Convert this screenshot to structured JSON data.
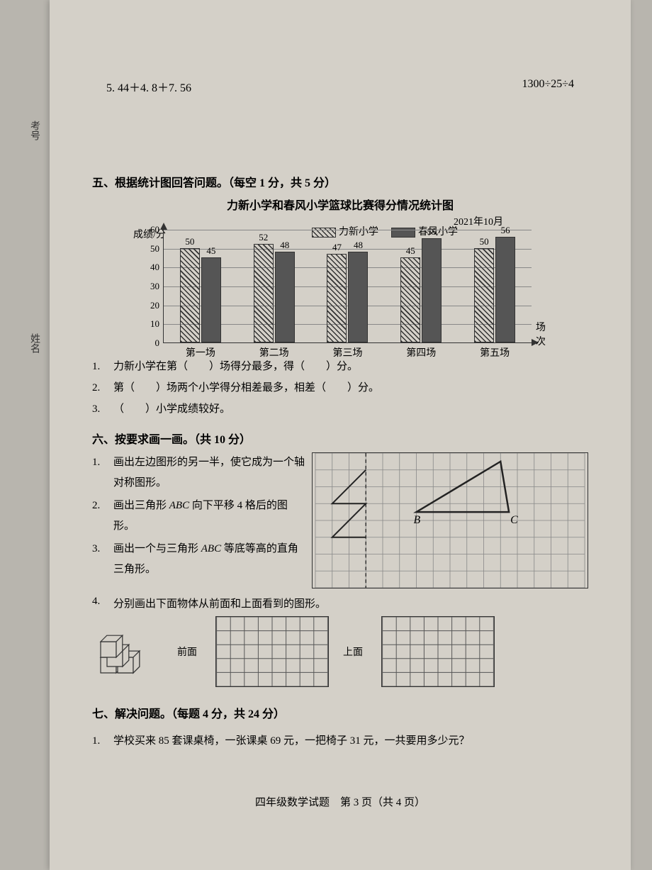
{
  "math": {
    "expr1": "5. 44＋4. 8＋7. 56",
    "expr2": "1300÷25÷4"
  },
  "sidebar": {
    "label1": "考号",
    "label2": "姓名"
  },
  "section5": {
    "title": "五、根据统计图回答问题。（每空 1 分，共 5 分）",
    "chart_title": "力新小学和春风小学篮球比赛得分情况统计图",
    "chart_date": "2021年10月",
    "ylabel": "成绩/分",
    "xlabel": "场次",
    "legend1": "力新小学",
    "legend2": "春风小学",
    "ymax": 60,
    "ytick_step": 10,
    "categories": [
      "第一场",
      "第二场",
      "第三场",
      "第四场",
      "第五场"
    ],
    "series1": [
      50,
      52,
      47,
      45,
      50
    ],
    "series2": [
      45,
      48,
      48,
      55,
      56
    ],
    "pattern1": "hatched",
    "pattern2": "solid",
    "grid_color": "#888",
    "axis_color": "#333",
    "q1": "力新小学在第（　　）场得分最多，得（　　）分。",
    "q2": "第（　　）场两个小学得分相差最多，相差（　　）分。",
    "q3": "（　　）小学成绩较好。"
  },
  "section6": {
    "title": "六、按要求画一画。（共 10 分）",
    "q1": "画出左边图形的另一半，使它成为一个轴对称图形。",
    "q2_a": "画出三角形 ",
    "q2_b": "ABC",
    "q2_c": " 向下平移 4 格后的图形。",
    "q3_a": "画出一个与三角形 ",
    "q3_b": "ABC",
    "q3_c": " 等底等高的直角三角形。",
    "q4": "分别画出下面物体从前面和上面看到的图形。",
    "label_front": "前面",
    "label_top": "上面",
    "label_B": "B",
    "label_C": "C",
    "grid_cols": 16,
    "grid_rows": 8,
    "grid_cell": 24,
    "mini_cols": 8,
    "mini_rows": 5,
    "mini_cell": 20
  },
  "section7": {
    "title": "七、解决问题。（每题 4 分，共 24 分）",
    "q1": "学校买来 85 套课桌椅，一张课桌 69 元，一把椅子 31 元，一共要用多少元？"
  },
  "footer": "四年级数学试题　第 3 页（共 4 页）"
}
